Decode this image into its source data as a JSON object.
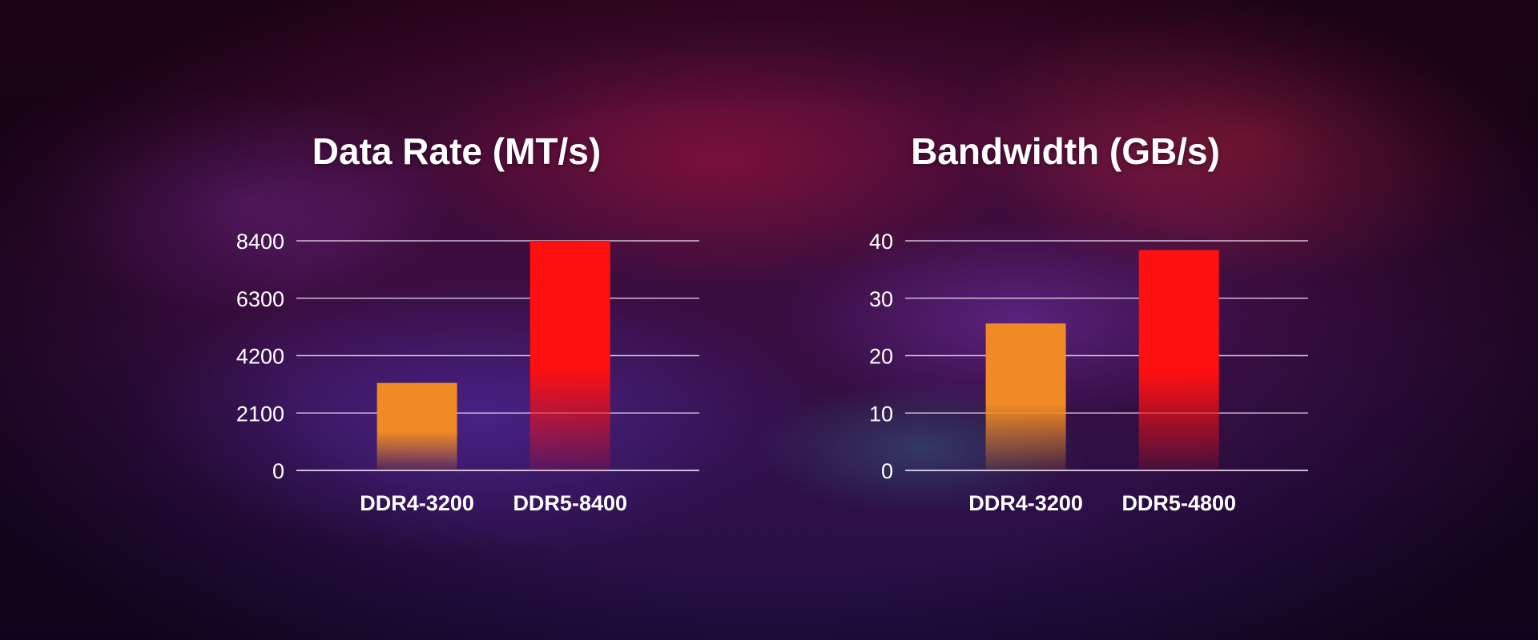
{
  "colors": {
    "ddr4": "#f08a24",
    "ddr5": "#ff1010",
    "grid": "#e9dcef",
    "text": "#ffffff"
  },
  "chart_data": [
    {
      "type": "bar",
      "title": "Data Rate (MT/s)",
      "categories": [
        "DDR4-3200",
        "DDR5-8400"
      ],
      "values": [
        3200,
        8400
      ],
      "ylim": [
        0,
        8400
      ],
      "yticks": [
        0,
        2100,
        4200,
        6300,
        8400
      ],
      "grid": true,
      "legend": "none"
    },
    {
      "type": "bar",
      "title": "Bandwidth (GB/s)",
      "categories": [
        "DDR4-3200",
        "DDR5-4800"
      ],
      "values": [
        25.6,
        38.4
      ],
      "ylim": [
        0,
        40
      ],
      "yticks": [
        0,
        10,
        20,
        30,
        40
      ],
      "grid": true,
      "legend": "none"
    }
  ]
}
